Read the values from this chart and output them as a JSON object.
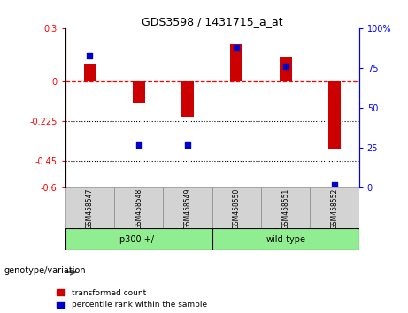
{
  "title": "GDS3598 / 1431715_a_at",
  "samples": [
    "GSM458547",
    "GSM458548",
    "GSM458549",
    "GSM458550",
    "GSM458551",
    "GSM458552"
  ],
  "red_values": [
    0.1,
    -0.12,
    -0.2,
    0.21,
    0.14,
    -0.38
  ],
  "blue_values": [
    83,
    27,
    27,
    88,
    76,
    2
  ],
  "ylim_left": [
    -0.6,
    0.3
  ],
  "yticks_left": [
    -0.6,
    -0.45,
    -0.225,
    0.0,
    0.3
  ],
  "ytick_labels_left": [
    "-0.6",
    "-0.45",
    "-0.225",
    "0",
    "0.3"
  ],
  "ylim_right": [
    0,
    100
  ],
  "yticks_right": [
    0,
    25,
    50,
    75,
    100
  ],
  "ytick_labels_right": [
    "0",
    "25",
    "50",
    "75",
    "100%"
  ],
  "hline_y": 0.0,
  "dotted_lines": [
    -0.225,
    -0.45
  ],
  "group_row_color": "#90EE90",
  "sample_row_color": "#d3d3d3",
  "bar_width": 0.25,
  "red_color": "#cc0000",
  "blue_color": "#0000cc",
  "legend_red": "transformed count",
  "legend_blue": "percentile rank within the sample",
  "genotype_label": "genotype/variation"
}
